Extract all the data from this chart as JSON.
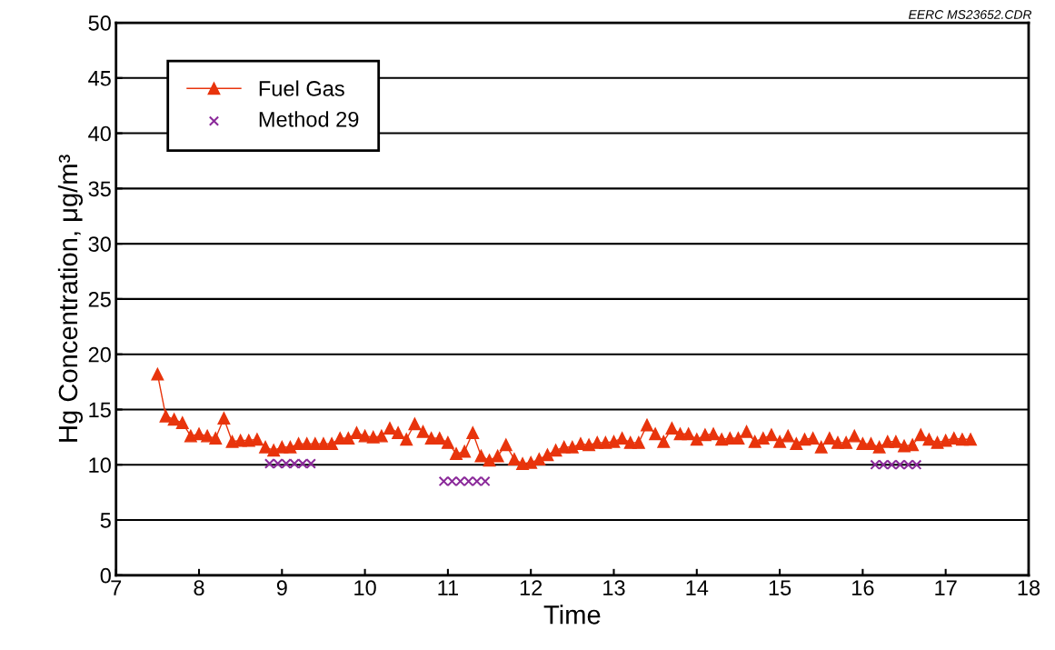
{
  "chart_data": {
    "type": "line",
    "xlabel": "Time",
    "ylabel": "Hg Concentration, μg/m³",
    "xlim": [
      7,
      18
    ],
    "xticks": [
      7,
      8,
      9,
      10,
      11,
      12,
      13,
      14,
      15,
      16,
      17,
      18
    ],
    "ylim": [
      0,
      50
    ],
    "yticks": [
      0,
      5,
      10,
      15,
      20,
      25,
      30,
      35,
      40,
      45,
      50
    ],
    "grid": "y",
    "legend": "top left",
    "annotations": [
      "EERC MS23652.CDR"
    ],
    "series": [
      {
        "name": "Fuel Gas",
        "marker": "triangle",
        "line_style": "solid",
        "color": "#e8340c",
        "x": [
          7.5,
          7.6,
          7.7,
          7.8,
          7.9,
          8.0,
          8.1,
          8.2,
          8.3,
          8.4,
          8.5,
          8.6,
          8.7,
          8.8,
          8.9,
          9.0,
          9.1,
          9.2,
          9.3,
          9.4,
          9.5,
          9.6,
          9.7,
          9.8,
          9.9,
          10.0,
          10.1,
          10.2,
          10.3,
          10.4,
          10.5,
          10.6,
          10.7,
          10.8,
          10.9,
          11.0,
          11.1,
          11.2,
          11.3,
          11.4,
          11.5,
          11.6,
          11.7,
          11.8,
          11.9,
          12.0,
          12.1,
          12.2,
          12.3,
          12.4,
          12.5,
          12.6,
          12.7,
          12.8,
          12.9,
          13.0,
          13.1,
          13.2,
          13.3,
          13.4,
          13.5,
          13.6,
          13.7,
          13.8,
          13.9,
          14.0,
          14.1,
          14.2,
          14.3,
          14.4,
          14.5,
          14.6,
          14.7,
          14.8,
          14.9,
          15.0,
          15.1,
          15.2,
          15.3,
          15.4,
          15.5,
          15.6,
          15.7,
          15.8,
          15.9,
          16.0,
          16.1,
          16.2,
          16.3,
          16.4,
          16.5,
          16.6,
          16.7,
          16.8,
          16.9,
          17.0,
          17.1,
          17.2,
          17.3
        ],
        "values": [
          18.2,
          14.4,
          14.1,
          13.8,
          12.6,
          12.8,
          12.6,
          12.4,
          14.2,
          12.1,
          12.2,
          12.2,
          12.3,
          11.6,
          11.3,
          11.6,
          11.6,
          11.9,
          11.9,
          11.9,
          11.9,
          11.9,
          12.4,
          12.4,
          12.9,
          12.6,
          12.5,
          12.6,
          13.3,
          12.9,
          12.3,
          13.7,
          13.0,
          12.4,
          12.4,
          12.0,
          11.0,
          11.2,
          12.9,
          10.8,
          10.4,
          10.8,
          11.8,
          10.5,
          10.1,
          10.2,
          10.5,
          10.9,
          11.3,
          11.6,
          11.6,
          11.9,
          11.8,
          12.0,
          12.0,
          12.1,
          12.4,
          12.0,
          12.0,
          13.6,
          12.8,
          12.1,
          13.3,
          12.8,
          12.8,
          12.3,
          12.7,
          12.8,
          12.3,
          12.4,
          12.4,
          13.0,
          12.1,
          12.4,
          12.7,
          12.1,
          12.6,
          11.9,
          12.3,
          12.4,
          11.6,
          12.4,
          12.0,
          12.0,
          12.6,
          11.9,
          11.9,
          11.6,
          12.1,
          12.1,
          11.7,
          11.8,
          12.7,
          12.3,
          12.0,
          12.2,
          12.4,
          12.3,
          12.3
        ]
      },
      {
        "name": "Method 29",
        "type": "scatter",
        "marker": "cross",
        "color": "#8b2a9a",
        "x": [
          8.85,
          8.95,
          9.05,
          9.15,
          9.25,
          9.35,
          10.95,
          11.05,
          11.15,
          11.25,
          11.35,
          11.45,
          16.15,
          16.25,
          16.35,
          16.45,
          16.55,
          16.65
        ],
        "values": [
          10.1,
          10.1,
          10.1,
          10.1,
          10.1,
          10.1,
          8.5,
          8.5,
          8.5,
          8.5,
          8.5,
          8.5,
          10.0,
          10.0,
          10.0,
          10.0,
          10.0,
          10.0
        ]
      }
    ]
  }
}
